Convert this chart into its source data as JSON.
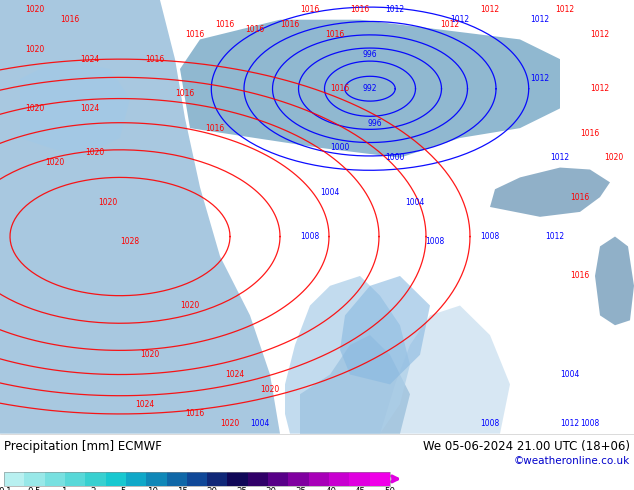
{
  "title_left": "Precipitation [mm] ECMWF",
  "title_right": "We 05-06-2024 21.00 UTC (18+06)",
  "credit": "©weatheronline.co.uk",
  "colorbar_tick_labels": [
    "0.1",
    "0.5",
    "1",
    "2",
    "5",
    "10",
    "15",
    "20",
    "25",
    "30",
    "35",
    "40",
    "45",
    "50"
  ],
  "colorbar_colors": [
    "#b8f0f0",
    "#98e8e8",
    "#78e0e0",
    "#58d8d8",
    "#38d0d0",
    "#18c8d0",
    "#10a8c8",
    "#1088b8",
    "#1068a8",
    "#104898",
    "#102878",
    "#100858",
    "#300068",
    "#580088",
    "#8000a0",
    "#a800b8",
    "#c800d0",
    "#e000e0",
    "#f000e8"
  ],
  "bg_color": "#ffffff",
  "legend_bg": "#ffffff",
  "label_fontsize": 8.5,
  "credit_color": "#0000cc",
  "map_colors": {
    "land_green": "#c8e8a0",
    "land_green2": "#b0d890",
    "ocean_blue": "#a8cce0",
    "precip_light": "#b0d8f0",
    "precip_mid": "#88b8e0",
    "precip_dark": "#6898d0"
  }
}
